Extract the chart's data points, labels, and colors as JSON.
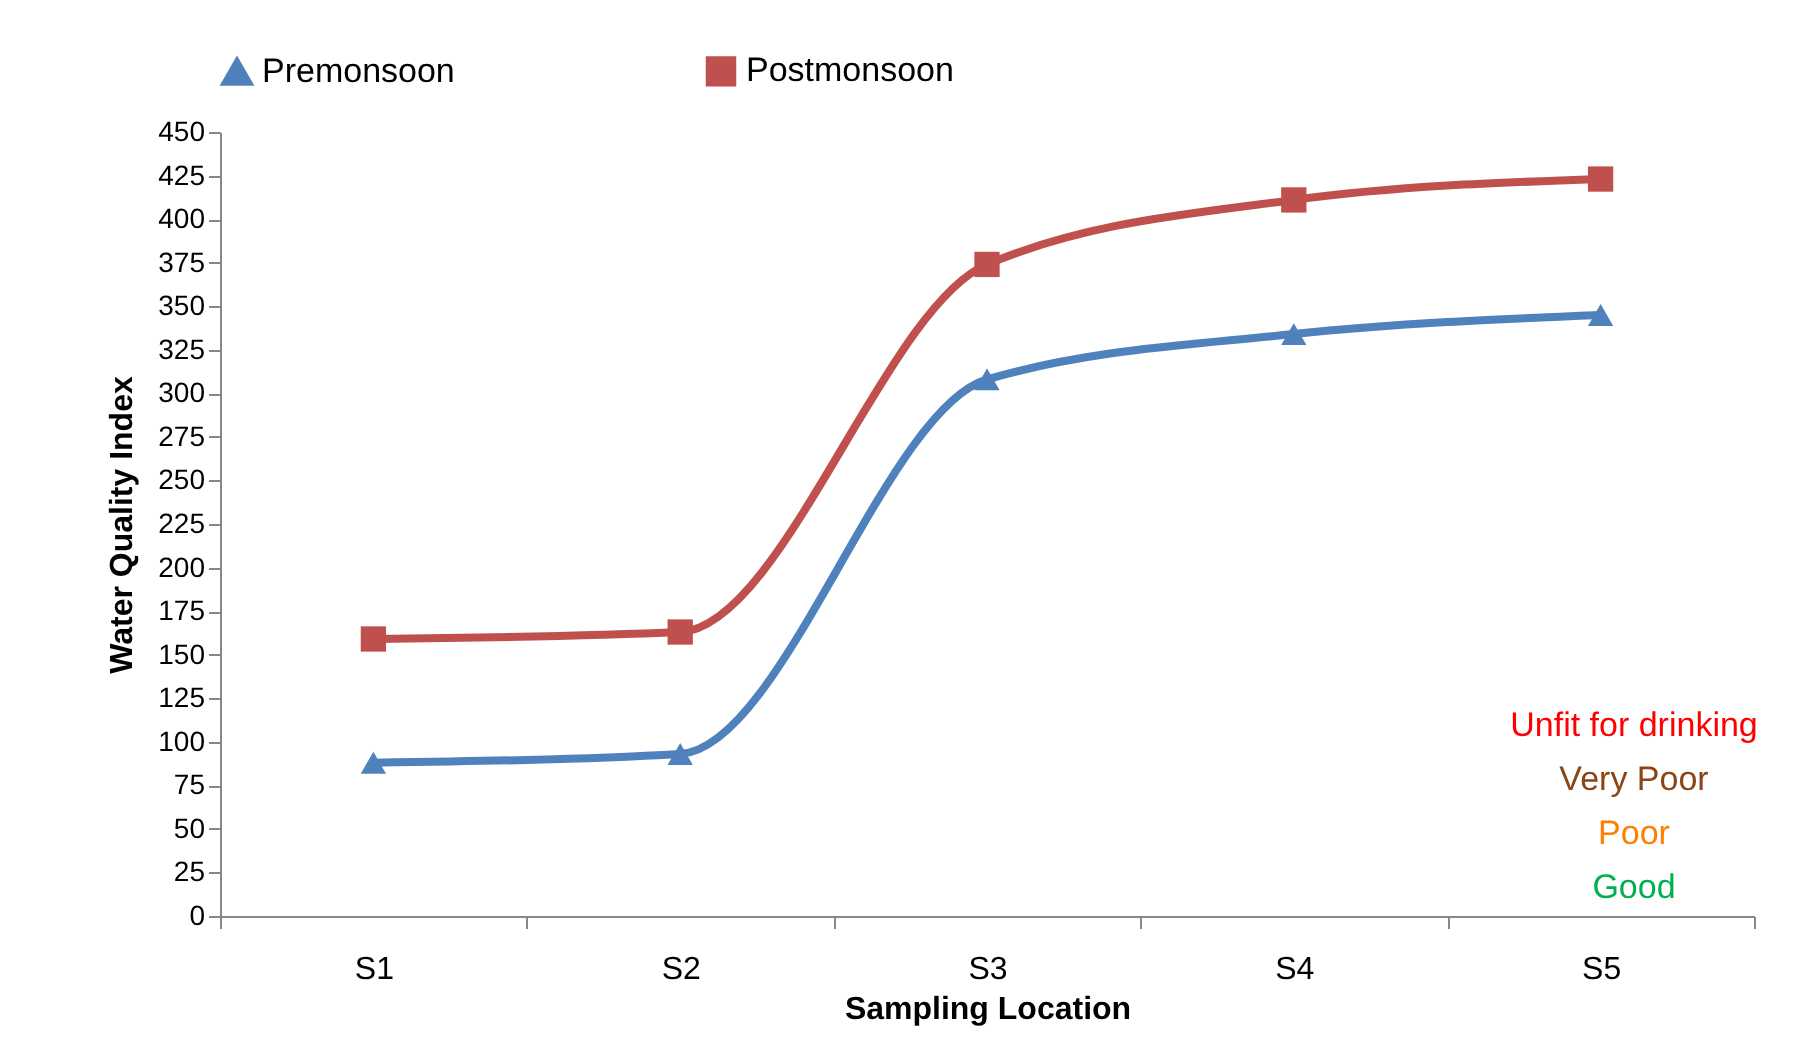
{
  "chart_data": {
    "type": "line",
    "xlabel": "Sampling Location",
    "ylabel": "Water Quality Index",
    "categories": [
      "S1",
      "S2",
      "S3",
      "S4",
      "S5"
    ],
    "series": [
      {
        "name": "Premonsoon",
        "color": "#4f81bd",
        "marker": "triangle",
        "values": [
          88,
          93,
          308,
          334,
          345
        ]
      },
      {
        "name": "Postmonsoon",
        "color": "#c0504d",
        "marker": "square",
        "values": [
          159,
          163,
          374,
          411,
          423
        ]
      }
    ],
    "ylim": [
      0,
      450
    ],
    "yticks": [
      0,
      25,
      50,
      75,
      100,
      125,
      150,
      175,
      200,
      225,
      250,
      275,
      300,
      325,
      350,
      375,
      400,
      425,
      450
    ],
    "grid": false,
    "legend": "top",
    "annotations": [
      "Unfit for drinking",
      "Very Poor",
      "Poor",
      "Good"
    ]
  }
}
